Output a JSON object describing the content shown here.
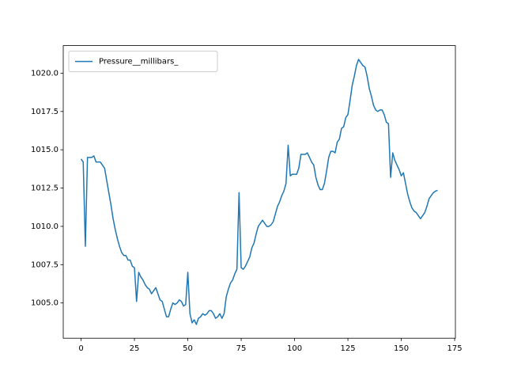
{
  "chart_data": {
    "type": "line",
    "x": [
      0,
      1,
      2,
      3,
      4,
      5,
      6,
      7,
      8,
      9,
      10,
      11,
      12,
      13,
      14,
      15,
      16,
      17,
      18,
      19,
      20,
      21,
      22,
      23,
      24,
      25,
      26,
      27,
      28,
      29,
      30,
      31,
      32,
      33,
      34,
      35,
      36,
      37,
      38,
      39,
      40,
      41,
      42,
      43,
      44,
      45,
      46,
      47,
      48,
      49,
      50,
      51,
      52,
      53,
      54,
      55,
      56,
      57,
      58,
      59,
      60,
      61,
      62,
      63,
      64,
      65,
      66,
      67,
      68,
      69,
      70,
      71,
      72,
      73,
      74,
      75,
      76,
      77,
      78,
      79,
      80,
      81,
      82,
      83,
      84,
      85,
      86,
      87,
      88,
      89,
      90,
      91,
      92,
      93,
      94,
      95,
      96,
      97,
      98,
      99,
      100,
      101,
      102,
      103,
      104,
      105,
      106,
      107,
      108,
      109,
      110,
      111,
      112,
      113,
      114,
      115,
      116,
      117,
      118,
      119,
      120,
      121,
      122,
      123,
      124,
      125,
      126,
      127,
      128,
      129,
      130,
      131,
      132,
      133,
      134,
      135,
      136,
      137,
      138,
      139,
      140,
      141,
      142,
      143,
      144,
      145,
      146,
      147,
      148,
      149,
      150,
      151,
      152,
      153,
      154,
      155,
      156,
      157,
      158,
      159,
      160,
      161,
      162,
      163,
      164,
      165,
      166,
      167
    ],
    "series": [
      {
        "name": "Pressure__millibars_",
        "color": "#1f77b4",
        "values": [
          1014.4,
          1014.2,
          1008.7,
          1014.5,
          1014.5,
          1014.5,
          1014.6,
          1014.2,
          1014.2,
          1014.2,
          1014.0,
          1013.8,
          1013.0,
          1012.2,
          1011.4,
          1010.5,
          1009.8,
          1009.2,
          1008.7,
          1008.3,
          1008.1,
          1008.1,
          1007.8,
          1007.8,
          1007.4,
          1007.3,
          1005.1,
          1007.0,
          1006.7,
          1006.5,
          1006.2,
          1006.0,
          1005.9,
          1005.6,
          1005.8,
          1006.0,
          1005.6,
          1005.2,
          1005.1,
          1004.6,
          1004.1,
          1004.1,
          1004.6,
          1005.0,
          1004.9,
          1005.0,
          1005.2,
          1005.1,
          1004.8,
          1004.9,
          1007.0,
          1004.3,
          1003.7,
          1003.9,
          1003.6,
          1004.0,
          1004.1,
          1004.3,
          1004.2,
          1004.3,
          1004.5,
          1004.5,
          1004.3,
          1004.0,
          1004.1,
          1004.3,
          1004.0,
          1004.3,
          1005.4,
          1005.9,
          1006.3,
          1006.5,
          1006.9,
          1007.2,
          1012.2,
          1007.3,
          1007.2,
          1007.4,
          1007.7,
          1008.0,
          1008.6,
          1008.9,
          1009.5,
          1010.0,
          1010.2,
          1010.4,
          1010.2,
          1010.0,
          1010.0,
          1010.1,
          1010.3,
          1010.8,
          1011.3,
          1011.6,
          1012.0,
          1012.3,
          1012.8,
          1015.3,
          1013.3,
          1013.4,
          1013.4,
          1013.4,
          1013.8,
          1014.7,
          1014.7,
          1014.7,
          1014.8,
          1014.5,
          1014.2,
          1014.0,
          1013.2,
          1012.7,
          1012.4,
          1012.4,
          1012.8,
          1013.6,
          1014.5,
          1014.9,
          1014.9,
          1014.8,
          1015.5,
          1015.7,
          1016.4,
          1016.5,
          1017.1,
          1017.3,
          1018.2,
          1019.2,
          1019.8,
          1020.5,
          1020.9,
          1020.7,
          1020.5,
          1020.4,
          1019.8,
          1019.0,
          1018.5,
          1017.9,
          1017.6,
          1017.5,
          1017.6,
          1017.6,
          1017.3,
          1016.8,
          1016.7,
          1013.2,
          1014.8,
          1014.3,
          1014.0,
          1013.7,
          1013.3,
          1013.5,
          1012.8,
          1012.1,
          1011.6,
          1011.2,
          1011.0,
          1010.9,
          1010.7,
          1010.5,
          1010.7,
          1010.9,
          1011.3,
          1011.8,
          1012.0,
          1012.2,
          1012.3,
          1012.35
        ]
      }
    ],
    "xlim": [
      -8.35,
      175.35
    ],
    "xticks": [
      0,
      25,
      50,
      75,
      100,
      125,
      150,
      175
    ],
    "ylim": [
      1002.7,
      1021.8
    ],
    "yticks": [
      {
        "value": 1005,
        "label": "1005.0"
      },
      1007.5,
      {
        "value": 1010,
        "label": "1010.0"
      },
      1012.5,
      {
        "value": 1015,
        "label": "1015.0"
      },
      1017.5,
      {
        "value": 1020,
        "label": "1020.0"
      }
    ],
    "legend": "upper left",
    "grid": false
  }
}
